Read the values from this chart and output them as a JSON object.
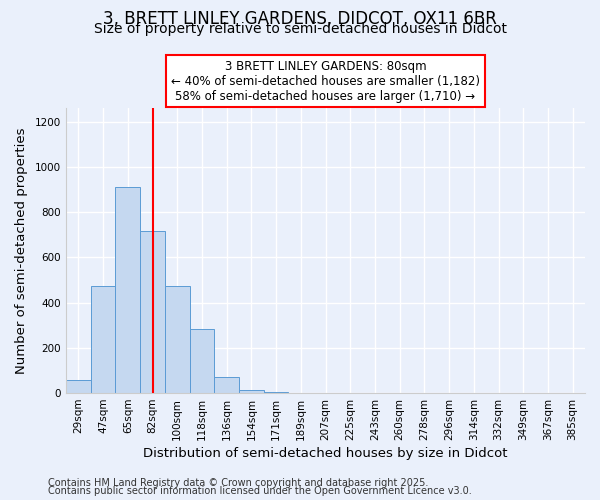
{
  "title_line1": "3, BRETT LINLEY GARDENS, DIDCOT, OX11 6BR",
  "title_line2": "Size of property relative to semi-detached houses in Didcot",
  "xlabel": "Distribution of semi-detached houses by size in Didcot",
  "ylabel": "Number of semi-detached properties",
  "bar_labels": [
    "29sqm",
    "47sqm",
    "65sqm",
    "82sqm",
    "100sqm",
    "118sqm",
    "136sqm",
    "154sqm",
    "171sqm",
    "189sqm",
    "207sqm",
    "225sqm",
    "243sqm",
    "260sqm",
    "278sqm",
    "296sqm",
    "314sqm",
    "332sqm",
    "349sqm",
    "367sqm",
    "385sqm"
  ],
  "bar_values": [
    60,
    475,
    910,
    715,
    475,
    285,
    70,
    15,
    5,
    0,
    0,
    0,
    0,
    0,
    0,
    0,
    0,
    0,
    0,
    0,
    0
  ],
  "bar_color": "#c5d8f0",
  "bar_edge_color": "#5b9bd5",
  "vline_index": 3,
  "vline_color": "red",
  "ylim": [
    0,
    1260
  ],
  "yticks": [
    0,
    200,
    400,
    600,
    800,
    1000,
    1200
  ],
  "annotation_title": "3 BRETT LINLEY GARDENS: 80sqm",
  "annotation_line1": "← 40% of semi-detached houses are smaller (1,182)",
  "annotation_line2": "58% of semi-detached houses are larger (1,710) →",
  "annotation_box_color": "white",
  "annotation_box_edge": "red",
  "background_color": "#eaf0fb",
  "grid_color": "white",
  "footer_line1": "Contains HM Land Registry data © Crown copyright and database right 2025.",
  "footer_line2": "Contains public sector information licensed under the Open Government Licence v3.0.",
  "title_fontsize": 12,
  "subtitle_fontsize": 10,
  "axis_label_fontsize": 9.5,
  "tick_fontsize": 7.5,
  "annotation_fontsize": 8.5,
  "footer_fontsize": 7
}
